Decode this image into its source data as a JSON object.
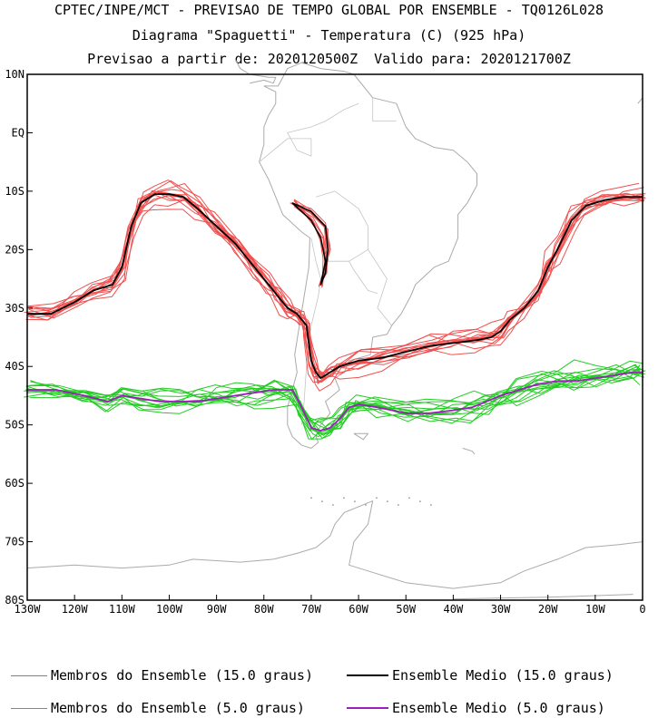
{
  "header": {
    "line1": "CPTEC/INPE/MCT - PREVISAO DE TEMPO GLOBAL POR ENSEMBLE - TQ0126L028",
    "line2": "Diagrama \"Spaguetti\" - Temperatura (C) (925 hPa)",
    "line3": "Previsao a partir de: 2020120500Z  Valido para: 2020121700Z"
  },
  "map": {
    "region": "South America and South Atlantic",
    "lon_range": [
      -130,
      0
    ],
    "lat_range": [
      -80,
      10
    ],
    "coastline_color": "#aaaaaa",
    "land_fill": "#ffffff"
  },
  "chart_data": {
    "type": "line",
    "x_ticks": [
      "130W",
      "120W",
      "110W",
      "100W",
      "90W",
      "80W",
      "70W",
      "60W",
      "50W",
      "40W",
      "30W",
      "20W",
      "10W",
      "0"
    ],
    "y_ticks": [
      "10N",
      "EQ",
      "10S",
      "20S",
      "30S",
      "40S",
      "50S",
      "60S",
      "70S",
      "80S"
    ],
    "x_tick_values": [
      -130,
      -120,
      -110,
      -100,
      -90,
      -80,
      -70,
      -60,
      -50,
      -40,
      -30,
      -20,
      -10,
      0
    ],
    "y_tick_values": [
      10,
      0,
      -10,
      -20,
      -30,
      -40,
      -50,
      -60,
      -70,
      -80
    ],
    "series": [
      {
        "name": "Ensemble Medio (15.0 graus)",
        "color": "#000000",
        "lon": [
          -130,
          -125,
          -120,
          -116,
          -112,
          -110,
          -108,
          -106,
          -103,
          -100,
          -97,
          -94,
          -90,
          -86,
          -82,
          -79,
          -77,
          -75,
          -73,
          -72,
          -71,
          -70,
          -69,
          -68,
          -66,
          -64,
          -60,
          -55,
          -50,
          -45,
          -40,
          -35,
          -32,
          -30,
          -28,
          -25,
          -22,
          -20,
          -18,
          -15,
          -12,
          -8,
          -4,
          0
        ],
        "lat": [
          -31,
          -31,
          -29,
          -27,
          -26,
          -23,
          -16,
          -12,
          -10.5,
          -10.5,
          -11,
          -13,
          -16,
          -19,
          -23,
          -26,
          -28,
          -30,
          -31,
          -32,
          -33,
          -39,
          -41,
          -42,
          -41,
          -40,
          -39,
          -38.5,
          -37.5,
          -36.5,
          -36,
          -35.5,
          -35,
          -34,
          -32,
          -30,
          -27,
          -23,
          -20,
          -15,
          -12.5,
          -11.5,
          -11,
          -11
        ]
      },
      {
        "name": "Ensemble Medio (5.0 graus)",
        "color": "#9b1fb8",
        "lon": [
          -130,
          -124,
          -118,
          -113,
          -110,
          -106,
          -102,
          -98,
          -94,
          -90,
          -86,
          -82,
          -78,
          -74,
          -72,
          -70,
          -68,
          -66,
          -64,
          -62,
          -60,
          -56,
          -50,
          -45,
          -40,
          -36,
          -33,
          -30,
          -26,
          -22,
          -18,
          -14,
          -10,
          -6,
          -2,
          0
        ],
        "lat": [
          -44,
          -44,
          -45,
          -46,
          -45,
          -45.5,
          -46,
          -46,
          -46,
          -45.5,
          -45,
          -44.5,
          -44,
          -44,
          -47,
          -50.5,
          -51,
          -50.5,
          -49,
          -47,
          -46.5,
          -47,
          -48,
          -48,
          -47.5,
          -47,
          -46,
          -45,
          -44,
          -43,
          -42.5,
          -42.5,
          -42,
          -41.5,
          -41,
          -41
        ]
      }
    ],
    "legend": [
      {
        "label": "Membros do Ensemble (15.0 graus)",
        "color": "#f05050"
      },
      {
        "label": "Ensemble Medio (15.0 graus)",
        "color": "#000000"
      },
      {
        "label": "Membros do Ensemble (5.0 graus)",
        "color": "#22cc22"
      },
      {
        "label": "Ensemble Medio (5.0 graus)",
        "color": "#9b1fb8"
      }
    ],
    "members_15_count": 14,
    "members_5_count": 14,
    "grid": false,
    "legend_position": "bottom"
  }
}
